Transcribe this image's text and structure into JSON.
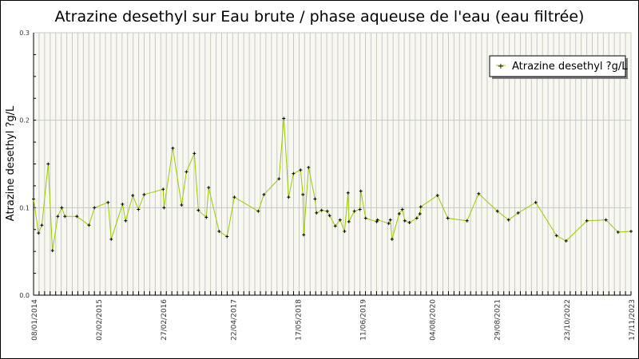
{
  "chart_data": {
    "type": "line",
    "title": "Atrazine desethyl sur Eau brute / phase aqueuse de l'eau (eau filtrée)",
    "xlabel": "",
    "ylabel": "Atrazine desethyl ?g/L",
    "xlim": [
      "2014-01-08",
      "2023-11-17"
    ],
    "ylim": [
      0,
      0.3
    ],
    "yticks": [
      "0.0",
      "0.1",
      "0.2",
      "0.3"
    ],
    "xticks": [
      {
        "label": "08/01/2014",
        "date": "2014-01-08"
      },
      {
        "label": "02/02/2015",
        "date": "2015-02-02"
      },
      {
        "label": "27/02/2016",
        "date": "2016-02-27"
      },
      {
        "label": "22/04/2017",
        "date": "2017-04-22"
      },
      {
        "label": "17/05/2018",
        "date": "2018-05-17"
      },
      {
        "label": "11/06/2019",
        "date": "2019-06-11"
      },
      {
        "label": "04/08/2020",
        "date": "2020-08-04"
      },
      {
        "label": "29/08/2021",
        "date": "2021-08-29"
      },
      {
        "label": "23/10/2022",
        "date": "2022-10-23"
      },
      {
        "label": "17/11/2023",
        "date": "2023-11-17"
      }
    ],
    "grid": true,
    "legend_position": "top-right",
    "colors": {
      "line": "#99cc00",
      "marker": "#000000",
      "plot_bg": "#f8f8f0",
      "grid": "#c8c8c8"
    },
    "series": [
      {
        "name": "Atrazine desethyl ?g/L",
        "x": [
          "2014-01-08",
          "2014-02-07",
          "2014-02-27",
          "2014-04-06",
          "2014-05-02",
          "2014-06-03",
          "2014-06-27",
          "2014-07-16",
          "2014-09-26",
          "2014-12-08",
          "2015-01-10",
          "2015-04-02",
          "2015-04-21",
          "2015-06-28",
          "2015-07-17",
          "2015-08-29",
          "2015-10-02",
          "2015-11-05",
          "2016-02-28",
          "2016-03-04",
          "2016-04-26",
          "2016-06-18",
          "2016-07-17",
          "2016-09-03",
          "2016-09-27",
          "2016-11-14",
          "2016-11-28",
          "2017-01-30",
          "2017-03-19",
          "2017-05-02",
          "2017-09-23",
          "2017-10-27",
          "2018-01-26",
          "2018-02-24",
          "2018-03-25",
          "2018-04-23",
          "2018-06-05",
          "2018-06-19",
          "2018-06-24",
          "2018-07-23",
          "2018-08-31",
          "2018-09-09",
          "2018-10-10",
          "2018-11-13",
          "2018-11-27",
          "2018-12-31",
          "2019-01-29",
          "2019-02-25",
          "2019-03-18",
          "2019-03-23",
          "2019-04-25",
          "2019-05-29",
          "2019-06-03",
          "2019-07-02",
          "2019-09-07",
          "2019-09-12",
          "2019-11-18",
          "2019-11-28",
          "2019-12-08",
          "2020-01-20",
          "2020-02-08",
          "2020-02-23",
          "2020-03-22",
          "2020-05-05",
          "2020-05-24",
          "2020-05-29",
          "2020-09-07",
          "2020-11-08",
          "2021-03-04",
          "2021-05-13",
          "2021-09-03",
          "2021-11-09",
          "2022-01-06",
          "2022-04-22",
          "2022-08-25",
          "2022-10-22",
          "2023-02-24",
          "2023-06-19",
          "2023-08-31",
          "2023-11-17"
        ],
        "y": [
          0.11,
          0.071,
          0.08,
          0.15,
          0.051,
          0.09,
          0.1,
          0.09,
          0.09,
          0.08,
          0.1,
          0.106,
          0.064,
          0.104,
          0.085,
          0.114,
          0.098,
          0.115,
          0.121,
          0.1,
          0.168,
          0.103,
          0.141,
          0.162,
          0.097,
          0.089,
          0.123,
          0.073,
          0.067,
          0.112,
          0.096,
          0.115,
          0.133,
          0.202,
          0.112,
          0.139,
          0.143,
          0.115,
          0.069,
          0.146,
          0.11,
          0.094,
          0.097,
          0.096,
          0.091,
          0.079,
          0.086,
          0.073,
          0.117,
          0.084,
          0.096,
          0.098,
          0.119,
          0.088,
          0.084,
          0.086,
          0.082,
          0.086,
          0.064,
          0.093,
          0.098,
          0.085,
          0.083,
          0.088,
          0.093,
          0.101,
          0.114,
          0.088,
          0.085,
          0.116,
          0.096,
          0.086,
          0.094,
          0.106,
          0.068,
          0.062,
          0.085,
          0.086,
          0.072,
          0.073
        ]
      }
    ]
  }
}
